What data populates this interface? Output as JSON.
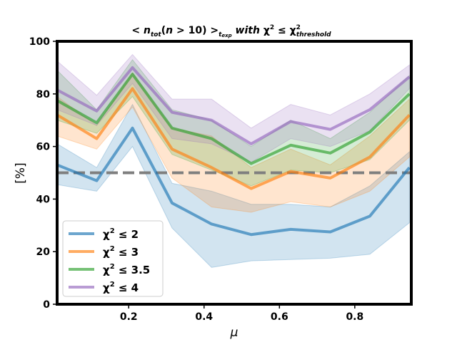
{
  "chart_data": {
    "type": "line",
    "title": {
      "t1": "< ",
      "t2": "n",
      "t3": "tot",
      "t4": "(",
      "t5": "n",
      "t6": " > 10) >",
      "t7": "t",
      "t8": "exp",
      "t9": "  with ",
      "t10": "χ",
      "t11": "2",
      "t12": " ≤ ",
      "t13": "χ",
      "t14": "2",
      "t15": "threshold"
    },
    "xlabel": "μ",
    "ylabel": "[%]",
    "xlim": [
      0.01,
      0.95
    ],
    "ylim": [
      0,
      100
    ],
    "xticks": [
      "0.2",
      "0.4",
      "0.6",
      "0.8"
    ],
    "yticks": [
      "0",
      "20",
      "40",
      "60",
      "80",
      "100"
    ],
    "x": [
      0.01,
      0.115,
      0.21,
      0.315,
      0.42,
      0.525,
      0.63,
      0.735,
      0.84,
      0.945
    ],
    "reference_line": 50,
    "series": [
      {
        "name": "χ² ≤ 2",
        "legend_main": "χ",
        "legend_sup": "2",
        "legend_rest": " ≤ 2",
        "color": "#1f77b4",
        "values": [
          53,
          47,
          67,
          38.5,
          30.5,
          26.5,
          28.5,
          27.5,
          33.5,
          52
        ],
        "upper": [
          61,
          52,
          76,
          46,
          43,
          38,
          38,
          37,
          45,
          58
        ],
        "lower": [
          45.5,
          43,
          60,
          29,
          14,
          16.5,
          17,
          17.5,
          19,
          31
        ]
      },
      {
        "name": "χ² ≤ 3",
        "legend_main": "χ",
        "legend_sup": "2",
        "legend_rest": " ≤ 3",
        "color": "#ff7f0e",
        "values": [
          72,
          63,
          82,
          59,
          52,
          44,
          50.5,
          48,
          56,
          72
        ],
        "upper": [
          79,
          68,
          88,
          67,
          64,
          52,
          59,
          53,
          64,
          78
        ],
        "lower": [
          64,
          59,
          75,
          48,
          37,
          35,
          39,
          37,
          43,
          56
        ]
      },
      {
        "name": "χ² ≤ 3.5",
        "legend_main": "χ",
        "legend_sup": "2",
        "legend_rest": " ≤ 3.5",
        "color": "#2ca02c",
        "values": [
          77.5,
          69,
          87.5,
          67,
          63,
          53.5,
          60.5,
          57.5,
          65.5,
          80
        ],
        "upper": [
          89,
          74,
          93,
          74,
          70,
          60,
          70,
          63,
          73,
          87
        ],
        "lower": [
          70,
          65,
          79,
          57,
          51,
          45,
          51,
          50,
          55,
          70
        ]
      },
      {
        "name": "χ² ≤ 4",
        "legend_main": "χ",
        "legend_sup": "2",
        "legend_rest": " ≤ 4",
        "color": "#9467bd",
        "values": [
          81.5,
          73.5,
          90,
          73,
          70,
          61,
          69.5,
          66.5,
          74,
          86.5
        ],
        "upper": [
          92.5,
          79.5,
          95,
          78,
          78,
          67,
          76,
          72,
          80,
          91
        ],
        "lower": [
          74,
          68,
          84,
          63,
          61,
          54,
          63,
          60,
          66,
          82
        ]
      }
    ],
    "legend_position": "lower-left"
  }
}
